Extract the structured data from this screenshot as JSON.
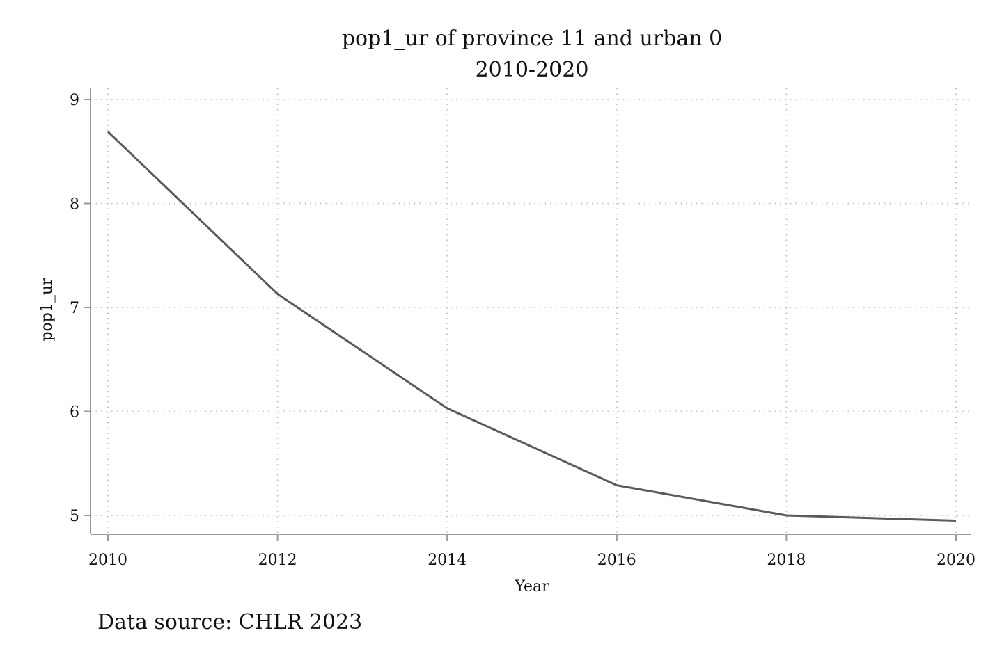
{
  "chart_data": {
    "type": "line",
    "title": "pop1_ur of province 11 and urban 0",
    "subtitle": "2010-2020",
    "xlabel": "Year",
    "ylabel": "pop1_ur",
    "note": "Data source: CHLR 2023",
    "x": [
      2010,
      2012,
      2014,
      2016,
      2018,
      2020
    ],
    "series": [
      {
        "values": [
          8.69,
          7.13,
          6.03,
          5.29,
          5.0,
          4.95
        ]
      }
    ],
    "xlim": [
      2010,
      2020
    ],
    "ylim": [
      5,
      9
    ],
    "xticks": [
      2010,
      2012,
      2014,
      2016,
      2018,
      2020
    ],
    "yticks": [
      5,
      6,
      7,
      8,
      9
    ],
    "grid": true,
    "legend": false,
    "colors": {
      "line": "#5a5a5a",
      "axis": "#999999",
      "grid": "#c8c8c8",
      "text": "#111111"
    }
  }
}
